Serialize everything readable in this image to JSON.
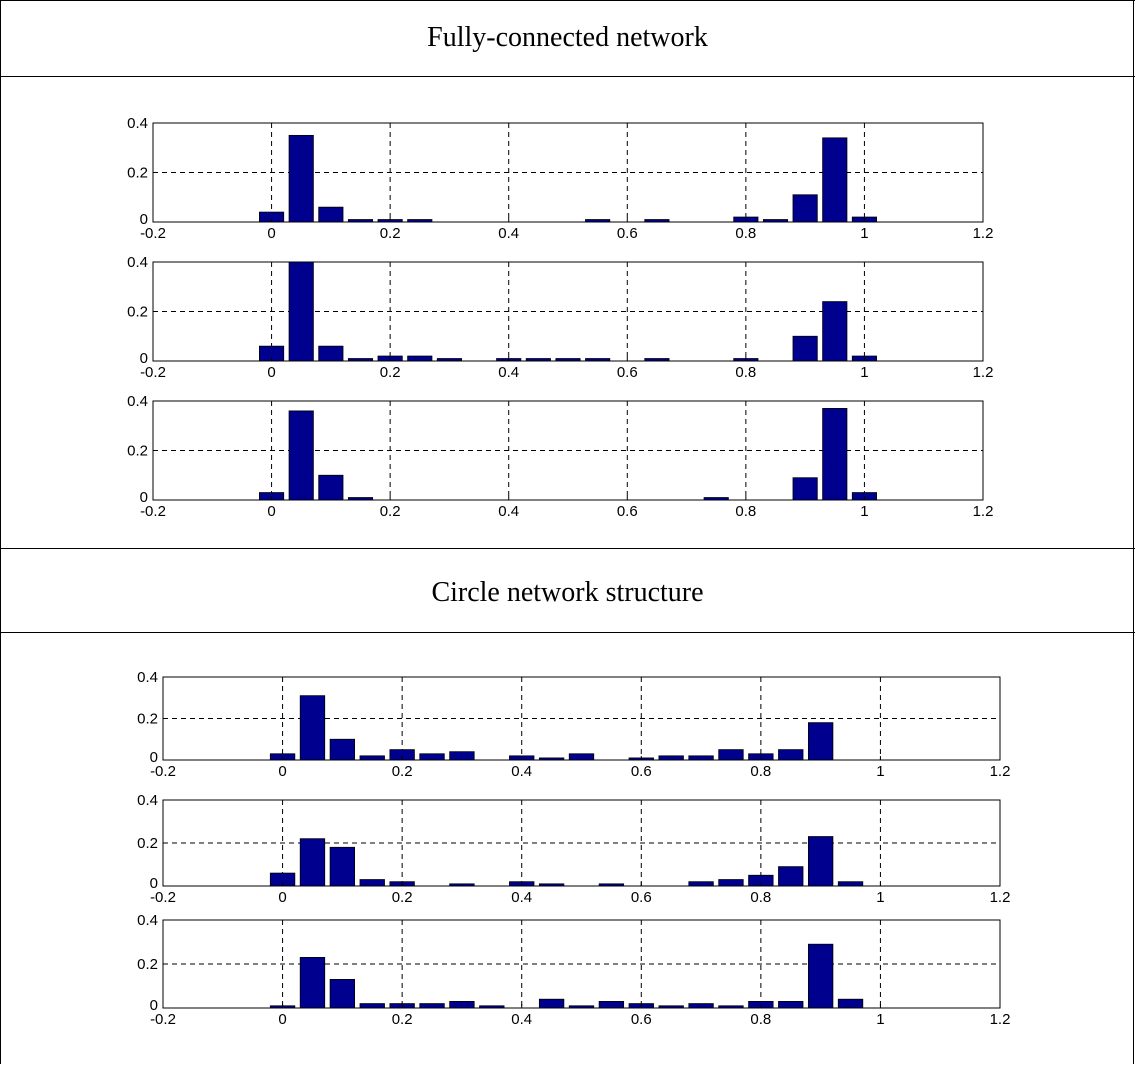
{
  "sections": [
    {
      "title": "Fully-connected network"
    },
    {
      "title": "Circle network structure"
    }
  ],
  "colors": {
    "bar": "#00008f",
    "grid": "#000000"
  },
  "chart_data": [
    {
      "type": "bar",
      "section": "Fully-connected network",
      "x": [
        0.0,
        0.05,
        0.1,
        0.15,
        0.2,
        0.25,
        0.3,
        0.35,
        0.4,
        0.45,
        0.5,
        0.55,
        0.6,
        0.65,
        0.7,
        0.75,
        0.8,
        0.85,
        0.9,
        0.95,
        1.0
      ],
      "values": [
        0.04,
        0.35,
        0.06,
        0.01,
        0.01,
        0.01,
        0,
        0,
        0,
        0,
        0,
        0.01,
        0,
        0.01,
        0,
        0,
        0.02,
        0.01,
        0.11,
        0.34,
        0.02
      ],
      "xlim": [
        -0.2,
        1.2
      ],
      "ylim": [
        0,
        0.4
      ],
      "xticks": [
        "-0.2",
        "0",
        "0.2",
        "0.4",
        "0.6",
        "0.8",
        "1",
        "1.2"
      ],
      "yticks": [
        "0",
        "0.2",
        "0.4"
      ],
      "grid": true
    },
    {
      "type": "bar",
      "section": "Fully-connected network",
      "x": [
        0.0,
        0.05,
        0.1,
        0.15,
        0.2,
        0.25,
        0.3,
        0.35,
        0.4,
        0.45,
        0.5,
        0.55,
        0.6,
        0.65,
        0.7,
        0.75,
        0.8,
        0.85,
        0.9,
        0.95,
        1.0
      ],
      "values": [
        0.06,
        0.41,
        0.06,
        0.01,
        0.02,
        0.02,
        0.01,
        0,
        0.01,
        0.01,
        0.01,
        0.01,
        0,
        0.01,
        0,
        0,
        0.01,
        0,
        0.1,
        0.24,
        0.02
      ],
      "xlim": [
        -0.2,
        1.2
      ],
      "ylim": [
        0,
        0.4
      ],
      "xticks": [
        "-0.2",
        "0",
        "0.2",
        "0.4",
        "0.6",
        "0.8",
        "1",
        "1.2"
      ],
      "yticks": [
        "0",
        "0.2",
        "0.4"
      ],
      "grid": true
    },
    {
      "type": "bar",
      "section": "Fully-connected network",
      "x": [
        0.0,
        0.05,
        0.1,
        0.15,
        0.2,
        0.25,
        0.3,
        0.35,
        0.4,
        0.45,
        0.5,
        0.55,
        0.6,
        0.65,
        0.7,
        0.75,
        0.8,
        0.85,
        0.9,
        0.95,
        1.0
      ],
      "values": [
        0.03,
        0.36,
        0.1,
        0.01,
        0,
        0,
        0,
        0,
        0,
        0,
        0,
        0,
        0,
        0,
        0,
        0.01,
        0,
        0,
        0.09,
        0.37,
        0.03
      ],
      "xlim": [
        -0.2,
        1.2
      ],
      "ylim": [
        0,
        0.4
      ],
      "xticks": [
        "-0.2",
        "0",
        "0.2",
        "0.4",
        "0.6",
        "0.8",
        "1",
        "1.2"
      ],
      "yticks": [
        "0",
        "0.2",
        "0.4"
      ],
      "grid": true
    },
    {
      "type": "bar",
      "section": "Circle network structure",
      "x": [
        0.0,
        0.05,
        0.1,
        0.15,
        0.2,
        0.25,
        0.3,
        0.35,
        0.4,
        0.45,
        0.5,
        0.55,
        0.6,
        0.65,
        0.7,
        0.75,
        0.8,
        0.85,
        0.9,
        0.95,
        1.0
      ],
      "values": [
        0.03,
        0.31,
        0.1,
        0.02,
        0.05,
        0.03,
        0.04,
        0,
        0.02,
        0.01,
        0.03,
        0,
        0.01,
        0.02,
        0.02,
        0.05,
        0.03,
        0.05,
        0.18,
        0,
        0
      ],
      "xlim": [
        -0.2,
        1.2
      ],
      "ylim": [
        0,
        0.4
      ],
      "xticks": [
        "-0.2",
        "0",
        "0.2",
        "0.4",
        "0.6",
        "0.8",
        "1",
        "1.2"
      ],
      "yticks": [
        "0",
        "0.2",
        "0.4"
      ],
      "grid": true
    },
    {
      "type": "bar",
      "section": "Circle network structure",
      "x": [
        0.0,
        0.05,
        0.1,
        0.15,
        0.2,
        0.25,
        0.3,
        0.35,
        0.4,
        0.45,
        0.5,
        0.55,
        0.6,
        0.65,
        0.7,
        0.75,
        0.8,
        0.85,
        0.9,
        0.95,
        1.0
      ],
      "values": [
        0.06,
        0.22,
        0.18,
        0.03,
        0.02,
        0,
        0.01,
        0,
        0.02,
        0.01,
        0,
        0.01,
        0,
        0,
        0.02,
        0.03,
        0.05,
        0.09,
        0.23,
        0.02,
        0
      ],
      "xlim": [
        -0.2,
        1.2
      ],
      "ylim": [
        0,
        0.4
      ],
      "xticks": [
        "-0.2",
        "0",
        "0.2",
        "0.4",
        "0.6",
        "0.8",
        "1",
        "1.2"
      ],
      "yticks": [
        "0",
        "0.2",
        "0.4"
      ],
      "grid": true
    },
    {
      "type": "bar",
      "section": "Circle network structure",
      "x": [
        0.0,
        0.05,
        0.1,
        0.15,
        0.2,
        0.25,
        0.3,
        0.35,
        0.4,
        0.45,
        0.5,
        0.55,
        0.6,
        0.65,
        0.7,
        0.75,
        0.8,
        0.85,
        0.9,
        0.95,
        1.0
      ],
      "values": [
        0.01,
        0.23,
        0.13,
        0.02,
        0.02,
        0.02,
        0.03,
        0.01,
        0,
        0.04,
        0.01,
        0.03,
        0.02,
        0.01,
        0.02,
        0.01,
        0.03,
        0.03,
        0.29,
        0.04,
        0
      ],
      "xlim": [
        -0.2,
        1.2
      ],
      "ylim": [
        0,
        0.4
      ],
      "xticks": [
        "-0.2",
        "0",
        "0.2",
        "0.4",
        "0.6",
        "0.8",
        "1",
        "1.2"
      ],
      "yticks": [
        "0",
        "0.2",
        "0.4"
      ],
      "grid": true
    }
  ]
}
